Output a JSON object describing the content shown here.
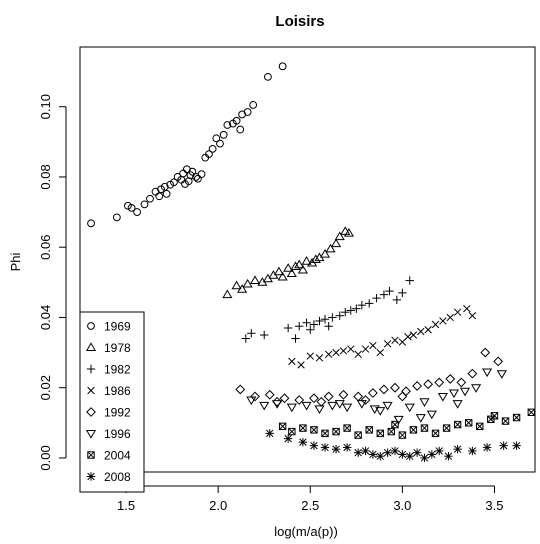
{
  "chart_data": {
    "type": "scatter",
    "title": "Loisirs",
    "xlabel": "log(m/a(p))",
    "ylabel": "Phi",
    "xlim": [
      1.25,
      3.72
    ],
    "ylim": [
      -0.004,
      0.117
    ],
    "xticks": [
      "1.5",
      "2.0",
      "2.5",
      "3.0",
      "3.5"
    ],
    "xtick_values": [
      1.5,
      2.0,
      2.5,
      3.0,
      3.5
    ],
    "yticks": [
      "0.00",
      "0.02",
      "0.04",
      "0.06",
      "0.08",
      "0.10"
    ],
    "ytick_values": [
      0.0,
      0.02,
      0.04,
      0.06,
      0.08,
      0.1
    ],
    "legend_position": "bottom-left",
    "marker_color": "#000000",
    "series": [
      {
        "name": "1969",
        "marker": "circle",
        "points": [
          [
            1.31,
            0.0668
          ],
          [
            1.45,
            0.0685
          ],
          [
            1.51,
            0.0718
          ],
          [
            1.53,
            0.0712
          ],
          [
            1.56,
            0.07
          ],
          [
            1.6,
            0.0722
          ],
          [
            1.63,
            0.0738
          ],
          [
            1.66,
            0.0758
          ],
          [
            1.68,
            0.0745
          ],
          [
            1.69,
            0.0765
          ],
          [
            1.71,
            0.0772
          ],
          [
            1.72,
            0.0752
          ],
          [
            1.74,
            0.0778
          ],
          [
            1.76,
            0.0785
          ],
          [
            1.78,
            0.08
          ],
          [
            1.8,
            0.0792
          ],
          [
            1.81,
            0.081
          ],
          [
            1.82,
            0.078
          ],
          [
            1.83,
            0.0822
          ],
          [
            1.84,
            0.0788
          ],
          [
            1.85,
            0.0805
          ],
          [
            1.86,
            0.0815
          ],
          [
            1.88,
            0.08
          ],
          [
            1.89,
            0.0795
          ],
          [
            1.91,
            0.0808
          ],
          [
            1.93,
            0.0855
          ],
          [
            1.95,
            0.0865
          ],
          [
            1.97,
            0.088
          ],
          [
            1.99,
            0.091
          ],
          [
            2.01,
            0.0895
          ],
          [
            2.03,
            0.092
          ],
          [
            2.05,
            0.0948
          ],
          [
            2.08,
            0.0952
          ],
          [
            2.1,
            0.096
          ],
          [
            2.12,
            0.0935
          ],
          [
            2.13,
            0.0978
          ],
          [
            2.16,
            0.0985
          ],
          [
            2.19,
            0.1005
          ],
          [
            2.27,
            0.1085
          ],
          [
            2.35,
            0.1115
          ]
        ]
      },
      {
        "name": "1978",
        "marker": "triangle-up",
        "points": [
          [
            2.05,
            0.0465
          ],
          [
            2.1,
            0.049
          ],
          [
            2.13,
            0.048
          ],
          [
            2.16,
            0.0495
          ],
          [
            2.2,
            0.0505
          ],
          [
            2.24,
            0.05
          ],
          [
            2.27,
            0.051
          ],
          [
            2.3,
            0.052
          ],
          [
            2.33,
            0.053
          ],
          [
            2.35,
            0.0515
          ],
          [
            2.38,
            0.054
          ],
          [
            2.4,
            0.0525
          ],
          [
            2.42,
            0.0545
          ],
          [
            2.44,
            0.055
          ],
          [
            2.46,
            0.0535
          ],
          [
            2.48,
            0.056
          ],
          [
            2.51,
            0.0555
          ],
          [
            2.53,
            0.0565
          ],
          [
            2.55,
            0.057
          ],
          [
            2.58,
            0.058
          ],
          [
            2.61,
            0.0595
          ],
          [
            2.64,
            0.061
          ],
          [
            2.66,
            0.063
          ],
          [
            2.69,
            0.0645
          ],
          [
            2.71,
            0.064
          ]
        ]
      },
      {
        "name": "1982",
        "marker": "plus",
        "points": [
          [
            2.15,
            0.034
          ],
          [
            2.18,
            0.0355
          ],
          [
            2.25,
            0.035
          ],
          [
            2.38,
            0.037
          ],
          [
            2.42,
            0.034
          ],
          [
            2.44,
            0.0375
          ],
          [
            2.48,
            0.0385
          ],
          [
            2.52,
            0.038
          ],
          [
            2.55,
            0.039
          ],
          [
            2.58,
            0.0395
          ],
          [
            2.62,
            0.04
          ],
          [
            2.66,
            0.0405
          ],
          [
            2.69,
            0.0415
          ],
          [
            2.72,
            0.042
          ],
          [
            2.75,
            0.0425
          ],
          [
            2.78,
            0.0435
          ],
          [
            2.82,
            0.044
          ],
          [
            2.86,
            0.0455
          ],
          [
            2.9,
            0.0465
          ],
          [
            2.93,
            0.0475
          ],
          [
            2.97,
            0.045
          ],
          [
            3.0,
            0.047
          ],
          [
            3.04,
            0.0505
          ],
          [
            2.5,
            0.0365
          ],
          [
            2.6,
            0.0375
          ]
        ]
      },
      {
        "name": "1986",
        "marker": "x",
        "points": [
          [
            2.4,
            0.0275
          ],
          [
            2.45,
            0.0265
          ],
          [
            2.5,
            0.029
          ],
          [
            2.55,
            0.0285
          ],
          [
            2.6,
            0.0295
          ],
          [
            2.64,
            0.03
          ],
          [
            2.68,
            0.0305
          ],
          [
            2.72,
            0.031
          ],
          [
            2.76,
            0.0295
          ],
          [
            2.8,
            0.031
          ],
          [
            2.84,
            0.032
          ],
          [
            2.88,
            0.03
          ],
          [
            2.92,
            0.0325
          ],
          [
            2.96,
            0.0335
          ],
          [
            3.0,
            0.033
          ],
          [
            3.03,
            0.0345
          ],
          [
            3.06,
            0.035
          ],
          [
            3.1,
            0.036
          ],
          [
            3.14,
            0.0365
          ],
          [
            3.18,
            0.038
          ],
          [
            3.22,
            0.039
          ],
          [
            3.26,
            0.04
          ],
          [
            3.3,
            0.0415
          ],
          [
            3.35,
            0.0425
          ],
          [
            3.38,
            0.0405
          ]
        ]
      },
      {
        "name": "1992",
        "marker": "diamond",
        "points": [
          [
            2.12,
            0.0195
          ],
          [
            2.2,
            0.0175
          ],
          [
            2.28,
            0.018
          ],
          [
            2.36,
            0.017
          ],
          [
            2.44,
            0.0165
          ],
          [
            2.52,
            0.017
          ],
          [
            2.6,
            0.0175
          ],
          [
            2.68,
            0.018
          ],
          [
            2.76,
            0.0175
          ],
          [
            2.84,
            0.0185
          ],
          [
            2.9,
            0.0195
          ],
          [
            2.96,
            0.02
          ],
          [
            3.02,
            0.019
          ],
          [
            3.08,
            0.0205
          ],
          [
            3.14,
            0.021
          ],
          [
            3.2,
            0.0215
          ],
          [
            3.26,
            0.0225
          ],
          [
            3.32,
            0.0215
          ],
          [
            3.38,
            0.024
          ],
          [
            3.45,
            0.03
          ],
          [
            3.52,
            0.0275
          ],
          [
            2.32,
            0.016
          ],
          [
            2.56,
            0.016
          ],
          [
            2.8,
            0.0165
          ],
          [
            3.0,
            0.0175
          ]
        ]
      },
      {
        "name": "1996",
        "marker": "triangle-down",
        "points": [
          [
            2.18,
            0.0165
          ],
          [
            2.25,
            0.015
          ],
          [
            2.32,
            0.0155
          ],
          [
            2.4,
            0.0145
          ],
          [
            2.48,
            0.015
          ],
          [
            2.55,
            0.014
          ],
          [
            2.62,
            0.015
          ],
          [
            2.7,
            0.0145
          ],
          [
            2.78,
            0.0155
          ],
          [
            2.85,
            0.014
          ],
          [
            2.92,
            0.015
          ],
          [
            2.98,
            0.011
          ],
          [
            3.04,
            0.0145
          ],
          [
            3.1,
            0.0115
          ],
          [
            3.16,
            0.0125
          ],
          [
            3.22,
            0.0175
          ],
          [
            3.28,
            0.0185
          ],
          [
            3.34,
            0.019
          ],
          [
            3.4,
            0.02
          ],
          [
            3.46,
            0.0245
          ],
          [
            3.54,
            0.024
          ],
          [
            2.66,
            0.0155
          ],
          [
            2.88,
            0.0135
          ],
          [
            3.12,
            0.016
          ],
          [
            3.3,
            0.0155
          ]
        ]
      },
      {
        "name": "2004",
        "marker": "boxed-x",
        "points": [
          [
            2.35,
            0.009
          ],
          [
            2.4,
            0.0075
          ],
          [
            2.46,
            0.0085
          ],
          [
            2.52,
            0.008
          ],
          [
            2.58,
            0.007
          ],
          [
            2.64,
            0.0075
          ],
          [
            2.7,
            0.0085
          ],
          [
            2.76,
            0.0065
          ],
          [
            2.82,
            0.008
          ],
          [
            2.88,
            0.007
          ],
          [
            2.94,
            0.0075
          ],
          [
            3.0,
            0.0065
          ],
          [
            3.06,
            0.008
          ],
          [
            3.12,
            0.0085
          ],
          [
            3.18,
            0.007
          ],
          [
            3.24,
            0.0085
          ],
          [
            3.3,
            0.0095
          ],
          [
            3.36,
            0.01
          ],
          [
            3.42,
            0.009
          ],
          [
            3.48,
            0.011
          ],
          [
            3.56,
            0.0105
          ],
          [
            3.62,
            0.0115
          ],
          [
            3.7,
            0.013
          ],
          [
            2.96,
            0.0095
          ],
          [
            3.5,
            0.012
          ]
        ]
      },
      {
        "name": "2008",
        "marker": "asterisk",
        "points": [
          [
            2.28,
            0.007
          ],
          [
            2.38,
            0.0055
          ],
          [
            2.46,
            0.0045
          ],
          [
            2.52,
            0.0035
          ],
          [
            2.58,
            0.003
          ],
          [
            2.64,
            0.0025
          ],
          [
            2.7,
            0.003
          ],
          [
            2.76,
            0.0015
          ],
          [
            2.8,
            0.002
          ],
          [
            2.84,
            0.001
          ],
          [
            2.88,
            0.0005
          ],
          [
            2.92,
            0.0015
          ],
          [
            2.96,
            0.002
          ],
          [
            3.0,
            0.001
          ],
          [
            3.04,
            0.0005
          ],
          [
            3.08,
            0.0015
          ],
          [
            3.12,
            0.0
          ],
          [
            3.16,
            0.001
          ],
          [
            3.2,
            0.002
          ],
          [
            3.25,
            0.0005
          ],
          [
            3.3,
            0.0025
          ],
          [
            3.38,
            0.002
          ],
          [
            3.46,
            0.003
          ],
          [
            3.55,
            0.0035
          ],
          [
            3.62,
            0.0035
          ]
        ]
      }
    ]
  }
}
